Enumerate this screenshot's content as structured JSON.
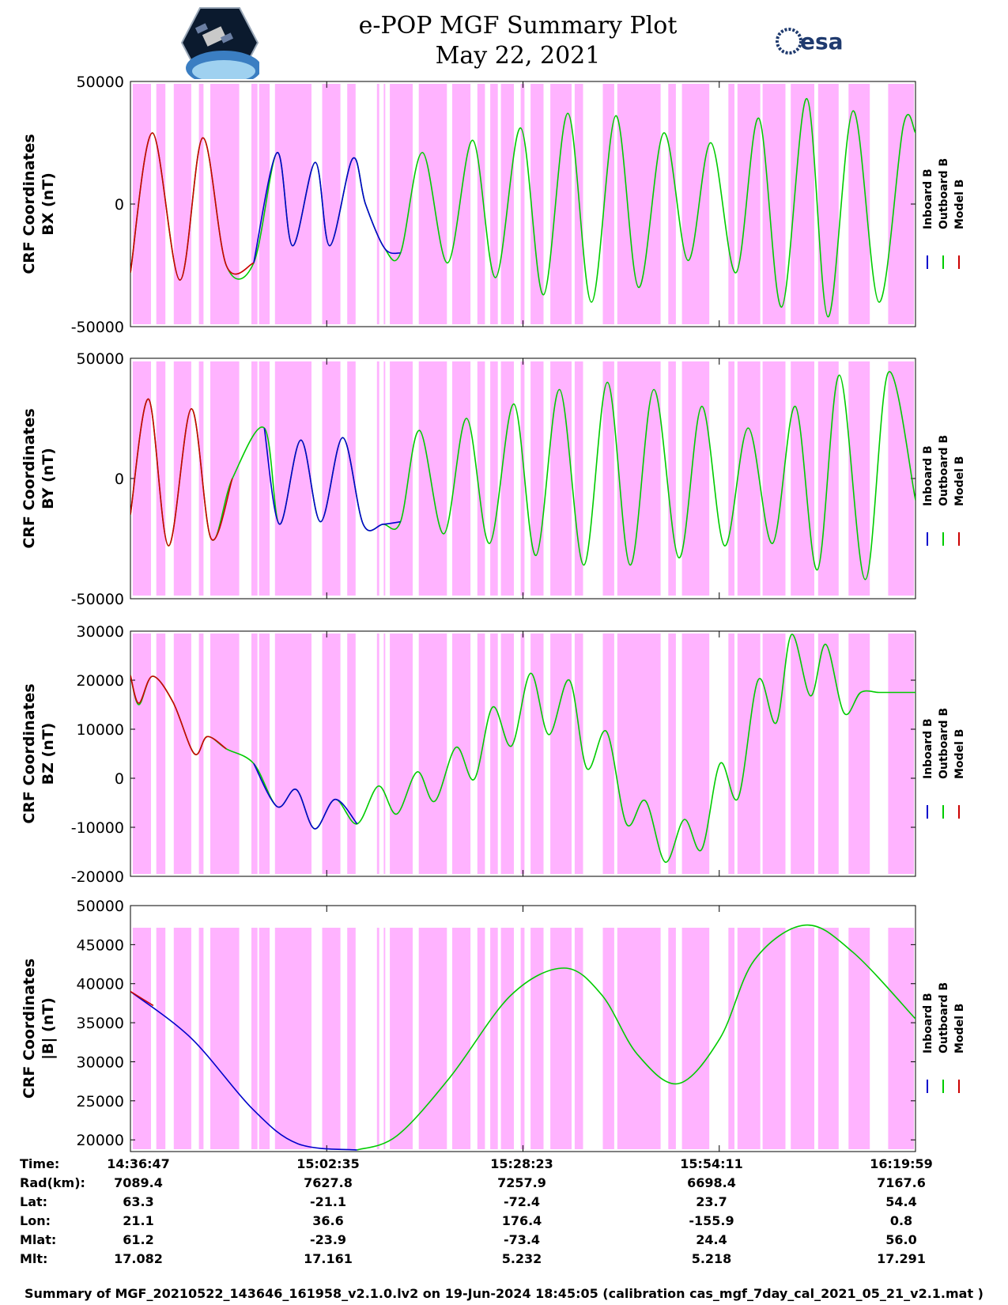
{
  "header": {
    "title_line1": "e-POP MGF Summary Plot",
    "title_line2": "May 22, 2021",
    "esa_label": "esa"
  },
  "colors": {
    "inboard": "#0000cc",
    "outboard": "#00cc00",
    "model": "#cc0000",
    "band": "#ffb3ff"
  },
  "legend": {
    "inboard": "Inboard B",
    "outboard": "Outboard B",
    "model": "Model B"
  },
  "chart_data": [
    {
      "type": "line",
      "title": "BX",
      "ylabel": [
        "CRF Coordinates",
        "BX (nT)"
      ],
      "ylim": [
        -50000,
        50000
      ],
      "yticks": [
        "50000",
        "0",
        "-50000"
      ],
      "x_range_minutes": [
        0,
        103.2
      ],
      "series": [
        {
          "name": "Inboard B",
          "segment_minutes": [
            16.2,
            35.5
          ],
          "x": [
            16.2,
            19.3,
            21.3,
            24.3,
            26.2,
            29.2,
            30.9,
            33.4,
            35.5
          ],
          "y": [
            -24000,
            21000,
            -17000,
            17000,
            -17000,
            18500,
            0,
            -18000,
            -20000
          ]
        },
        {
          "name": "Outboard B",
          "segment_minutes": [
            35.5,
            103.2
          ],
          "x": [
            0.0,
            2.9,
            6.5,
            9.5,
            12.6,
            16.2,
            19.3,
            21.3,
            24.3,
            26.2,
            29.2,
            30.9,
            33.4,
            35.5,
            38.4,
            41.7,
            45.0,
            48.0,
            51.3,
            54.3,
            57.5,
            60.6,
            63.8,
            66.8,
            70.1,
            73.3,
            76.3,
            79.6,
            82.6,
            85.6,
            88.9,
            91.7,
            95.0,
            98.4,
            101.6,
            103.2
          ],
          "y": [
            -28000,
            29000,
            -31000,
            27000,
            -25000,
            -24000,
            21000,
            -17000,
            17000,
            -17000,
            18500,
            0,
            -18000,
            -20000,
            21000,
            -24000,
            26000,
            -30000,
            31000,
            -37000,
            37000,
            -40000,
            36000,
            -34000,
            29000,
            -23000,
            25000,
            -28000,
            35000,
            -42000,
            43000,
            -46000,
            38000,
            -40000,
            32000,
            29000
          ]
        },
        {
          "name": "Model B",
          "segment_minutes": [
            0,
            103.2
          ],
          "x": [
            0.0,
            2.9,
            6.5,
            9.5,
            12.6,
            16.2
          ],
          "y": [
            -28000,
            29000,
            -31000,
            27000,
            -25000,
            -24000
          ]
        }
      ]
    },
    {
      "type": "line",
      "title": "BY",
      "ylabel": [
        "CRF Coordinates",
        "BY (nT)"
      ],
      "ylim": [
        -50000,
        50000
      ],
      "yticks": [
        "50000",
        "0",
        "-50000"
      ],
      "x_range_minutes": [
        0,
        103.2
      ],
      "series": [
        {
          "name": "Inboard B",
          "segment_minutes": [
            16.2,
            35.5
          ],
          "x": [
            17.6,
            19.6,
            22.4,
            25.0,
            27.9,
            30.6,
            33.2,
            35.5
          ],
          "y": [
            21000,
            -19000,
            16000,
            -18000,
            17000,
            -19000,
            -19000,
            -18000
          ]
        },
        {
          "name": "Outboard B",
          "segment_minutes": [
            35.5,
            103.2
          ],
          "x": [
            0.0,
            2.4,
            5.0,
            8.0,
            10.6,
            13.4,
            17.6,
            19.6,
            22.4,
            25.0,
            27.9,
            30.6,
            33.2,
            35.5,
            38.0,
            41.2,
            44.2,
            47.2,
            50.4,
            53.3,
            56.4,
            59.6,
            62.7,
            65.7,
            68.8,
            72.1,
            75.1,
            78.1,
            81.2,
            84.4,
            87.4,
            90.3,
            93.2,
            96.6,
            99.6,
            103.2
          ],
          "y": [
            -15000,
            33000,
            -28000,
            29000,
            -25000,
            0,
            21000,
            -19000,
            16000,
            -18000,
            17000,
            -19000,
            -19000,
            -18000,
            20000,
            -23000,
            25000,
            -27000,
            31000,
            -32000,
            37000,
            -36000,
            40000,
            -36000,
            37000,
            -33000,
            30000,
            -28000,
            21000,
            -27000,
            30000,
            -38000,
            43000,
            -42000,
            44000,
            -9000
          ]
        },
        {
          "name": "Model B",
          "segment_minutes": [
            0,
            103.2
          ],
          "x": [
            0.0,
            2.4,
            5.0,
            8.0,
            10.6,
            13.4
          ],
          "y": [
            -15000,
            33000,
            -28000,
            29000,
            -25000,
            0
          ]
        }
      ]
    },
    {
      "type": "line",
      "title": "BZ",
      "ylabel": [
        "CRF Coordinates",
        "BZ (nT)"
      ],
      "ylim": [
        -20000,
        30000
      ],
      "yticks": [
        "30000",
        "20000",
        "10000",
        "0",
        "-10000",
        "-20000"
      ],
      "x_range_minutes": [
        0,
        103.2
      ],
      "series": [
        {
          "name": "Inboard B",
          "segment_minutes": [
            16.2,
            29.8
          ],
          "x": [
            16.2,
            19.3,
            21.8,
            24.2,
            26.9,
            29.8
          ],
          "y": [
            3000,
            -5800,
            -2300,
            -10300,
            -4300,
            -9300
          ]
        },
        {
          "name": "Outboard B",
          "segment_minutes": [
            29.8,
            103.2
          ],
          "x": [
            0.0,
            1.1,
            2.9,
            5.6,
            8.4,
            10.1,
            12.6,
            16.2,
            19.3,
            21.8,
            24.2,
            26.9,
            29.8,
            32.6,
            35.0,
            37.7,
            40.0,
            42.8,
            45.2,
            47.6,
            50.1,
            52.6,
            55.0,
            57.7,
            60.0,
            62.6,
            65.2,
            67.7,
            70.3,
            72.8,
            75.1,
            77.5,
            79.9,
            82.5,
            84.9,
            86.9,
            89.4,
            91.4,
            93.8,
            96.0,
            98.4,
            100.7,
            103.2
          ],
          "y": [
            21000,
            15000,
            20800,
            15500,
            5000,
            8500,
            6000,
            3000,
            -5800,
            -2300,
            -10300,
            -4300,
            -9300,
            -1600,
            -7300,
            1300,
            -4700,
            6300,
            -200,
            14500,
            6600,
            21400,
            8900,
            20000,
            2000,
            9500,
            -9300,
            -4600,
            -17100,
            -8400,
            -14500,
            3000,
            -4000,
            20000,
            11300,
            29300,
            16800,
            27300,
            13300,
            17500,
            17500,
            17500,
            17500
          ]
        },
        {
          "name": "Model B",
          "segment_minutes": [
            0,
            103.2
          ],
          "x": [
            0.0,
            1.1,
            2.9,
            5.6,
            8.4,
            10.1,
            12.6
          ],
          "y": [
            21000,
            15300,
            20800,
            15500,
            5000,
            8500,
            6000
          ]
        }
      ]
    },
    {
      "type": "line",
      "title": "|B|",
      "ylabel": [
        "CRF Coordinates",
        "|B| (nT)"
      ],
      "ylim": [
        18500,
        50000
      ],
      "yticks": [
        "50000",
        "45000",
        "40000",
        "35000",
        "30000",
        "25000",
        "20000"
      ],
      "x_range_minutes": [
        0,
        103.2
      ],
      "series": [
        {
          "name": "Inboard B",
          "segment_minutes": [
            0,
            29.8
          ],
          "x": [
            0.0,
            8.0,
            16.0,
            22.0,
            29.8
          ],
          "y": [
            39000,
            33000,
            24000,
            19500,
            18700
          ]
        },
        {
          "name": "Outboard B",
          "segment_minutes": [
            29.8,
            103.2
          ],
          "x": [
            29.8,
            35.0,
            42.0,
            50.0,
            57.0,
            62.0,
            66.6,
            72.0,
            77.5,
            82.0,
            88.7,
            95.0,
            103.2
          ],
          "y": [
            18700,
            20500,
            28000,
            38500,
            42000,
            38500,
            31000,
            27200,
            33000,
            43000,
            47500,
            44000,
            35500
          ]
        },
        {
          "name": "Model B",
          "segment_minutes": [
            0,
            103.2
          ],
          "x": [
            0.0,
            3.0
          ],
          "y": [
            39000,
            37200
          ]
        }
      ]
    }
  ],
  "info_table": {
    "labels": [
      "Time:",
      "Rad(km):",
      "Lat:",
      "Lon:",
      "Mlat:",
      "Mlt:"
    ],
    "columns": [
      {
        "time": "14:36:47",
        "rad": "7089.4",
        "lat": "63.3",
        "lon": "21.1",
        "mlat": "61.2",
        "mlt": "17.082"
      },
      {
        "time": "15:02:35",
        "rad": "7627.8",
        "lat": "-21.1",
        "lon": "36.6",
        "mlat": "-23.9",
        "mlt": "17.161"
      },
      {
        "time": "15:28:23",
        "rad": "7257.9",
        "lat": "-72.4",
        "lon": "176.4",
        "mlat": "-73.4",
        "mlt": "5.232"
      },
      {
        "time": "15:54:11",
        "rad": "6698.4",
        "lat": "23.7",
        "lon": "-155.9",
        "mlat": "24.4",
        "mlt": "5.218"
      },
      {
        "time": "16:19:59",
        "rad": "7167.6",
        "lat": "54.4",
        "lon": "0.8",
        "mlat": "56.0",
        "mlt": "17.291"
      }
    ]
  },
  "footer": {
    "text": "Summary of MGF_20210522_143646_161958_v2.1.0.lv2 on 19-Jun-2024 18:45:05 (calibration cas_mgf_7day_cal_2021_05_21_v2.1.mat )"
  }
}
